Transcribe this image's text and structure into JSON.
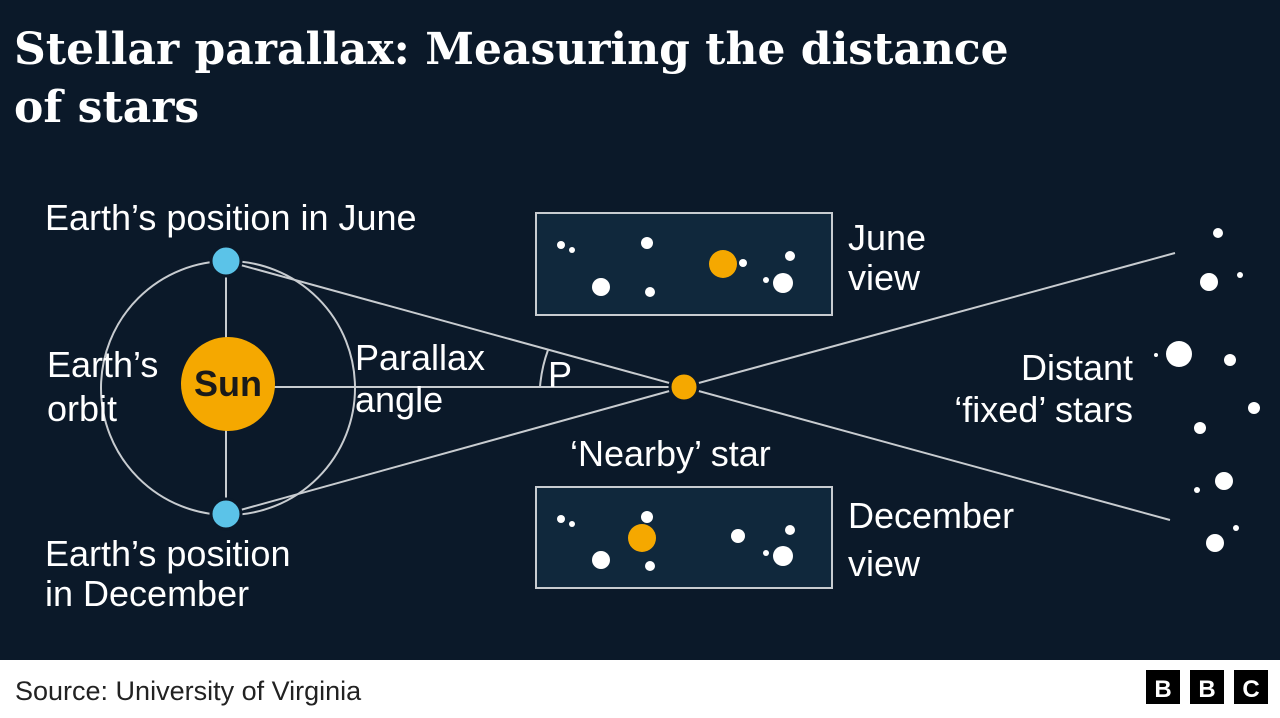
{
  "header": {
    "title_lines": [
      "Stellar parallax: Measuring the distance",
      "of stars"
    ]
  },
  "labels": {
    "earth_june": "Earth’s position in June",
    "earth_orbit": [
      "Earth’s",
      "orbit"
    ],
    "sun": "Sun",
    "parallax_angle": [
      "Parallax",
      "angle"
    ],
    "angle_symbol": "P",
    "nearby_star": "‘Nearby’ star",
    "june_view": [
      "June",
      "view"
    ],
    "december_view": [
      "December",
      "view"
    ],
    "distant_stars": [
      "Distant",
      "‘fixed’ stars"
    ],
    "earth_december": [
      "Earth’s position",
      "in December"
    ]
  },
  "footer": {
    "source": "Source: University of Virginia",
    "logo": [
      "B",
      "B",
      "C"
    ]
  }
}
